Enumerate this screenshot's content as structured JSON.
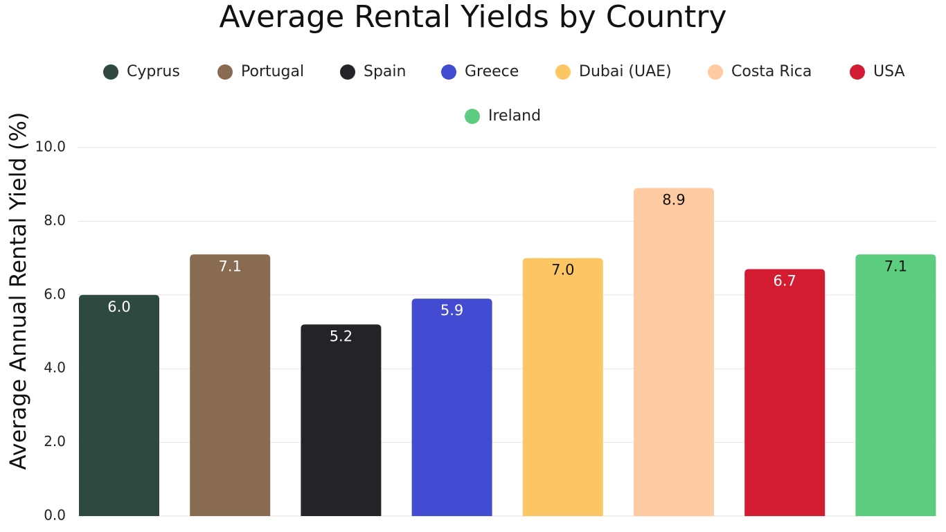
{
  "chart_data": {
    "type": "bar",
    "title": "Average Rental Yields by Country",
    "y_label": "Average Annual Rental Yield (%)",
    "categories": [
      null
    ],
    "series": [
      {
        "name": "Cyprus",
        "color": "#2e4a3e",
        "values": [
          6
        ],
        "value_labels": [
          "6.0"
        ]
      },
      {
        "name": "Portugal",
        "color": "#896b52",
        "values": [
          7.1
        ],
        "value_labels": [
          "7.1"
        ]
      },
      {
        "name": "Spain",
        "color": "#232427",
        "values": [
          5.2
        ],
        "value_labels": [
          "5.2"
        ]
      },
      {
        "name": "Greece",
        "color": "#424bd1",
        "values": [
          5.9
        ],
        "value_labels": [
          "5.9"
        ]
      },
      {
        "name": "Dubai (UAE)",
        "color": "#fdc665",
        "values": [
          7
        ],
        "value_labels": [
          "7.0"
        ]
      },
      {
        "name": "Costa Rica",
        "color": "#ffcba3",
        "values": [
          8.9
        ],
        "value_labels": [
          "8.9"
        ]
      },
      {
        "name": "USA",
        "color": "#d31c32",
        "values": [
          6.7
        ],
        "value_labels": [
          "6.7"
        ]
      },
      {
        "name": "Ireland",
        "color": "#5ccd7f",
        "values": [
          7.1
        ],
        "value_labels": [
          "7.1"
        ]
      }
    ],
    "ylim": [
      0,
      10
    ],
    "yticks": [
      {
        "value": 0,
        "label": "0.0"
      },
      {
        "value": 2,
        "label": "2.0"
      },
      {
        "value": 4,
        "label": "4.0"
      },
      {
        "value": 6,
        "label": "6.0"
      },
      {
        "value": 8,
        "label": "8.0"
      },
      {
        "value": 10,
        "label": "10.0"
      }
    ],
    "grid": true
  }
}
